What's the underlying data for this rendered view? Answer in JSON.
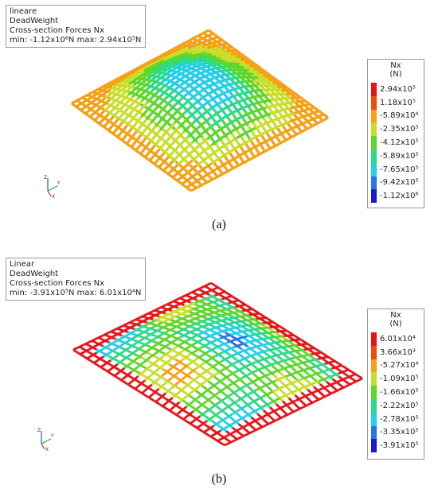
{
  "panels": [
    {
      "info": {
        "line1": "lineare",
        "line2": "DeadWeight",
        "line3": "Cross-section Forces Nx",
        "line4": "min: -1.12x10⁶N max: 2.94x10⁵N"
      },
      "legend": {
        "title": "Nx",
        "unit": "(N)",
        "entries": [
          {
            "label": "2.94x10⁵",
            "color": "#e8141a"
          },
          {
            "label": "1.18x10⁵",
            "color": "#f04e0e"
          },
          {
            "label": "-5.89x10⁴",
            "color": "#f5a015"
          },
          {
            "label": "-2.35x10⁵",
            "color": "#c8de2a"
          },
          {
            "label": "-4.12x10⁵",
            "color": "#5ed62c"
          },
          {
            "label": "-5.89x10⁵",
            "color": "#2ed98a"
          },
          {
            "label": "-7.65x10⁵",
            "color": "#25cfe6"
          },
          {
            "label": "-9.42x10⁵",
            "color": "#2a74e6"
          },
          {
            "label": "-1.12x10⁶",
            "color": "#1a1ad2"
          }
        ]
      },
      "caption": "(a)"
    },
    {
      "info": {
        "line1": "Linear",
        "line2": "DeadWeight",
        "line3": "Cross-section Forces Nx",
        "line4": "min: -3.91x10⁵N max: 6.01x10⁴N"
      },
      "legend": {
        "title": "Nx",
        "unit": "(N)",
        "entries": [
          {
            "label": "6.01x10⁴",
            "color": "#e8141a"
          },
          {
            "label": "3.66x10³",
            "color": "#f04e0e"
          },
          {
            "label": "-5.27x10⁴",
            "color": "#f5a015"
          },
          {
            "label": "-1.09x10⁵",
            "color": "#c8de2a"
          },
          {
            "label": "-1.66x10⁵",
            "color": "#5ed62c"
          },
          {
            "label": "-2.22x10⁵",
            "color": "#2ed98a"
          },
          {
            "label": "-2.78x10⁵",
            "color": "#25cfe6"
          },
          {
            "label": "-3.35x10⁵",
            "color": "#2a74e6"
          },
          {
            "label": "-3.91x10⁵",
            "color": "#1a1ad2"
          }
        ]
      },
      "caption": "(b)"
    }
  ],
  "axis_triad": {
    "z": "Z",
    "x": "X",
    "y": "Y"
  }
}
